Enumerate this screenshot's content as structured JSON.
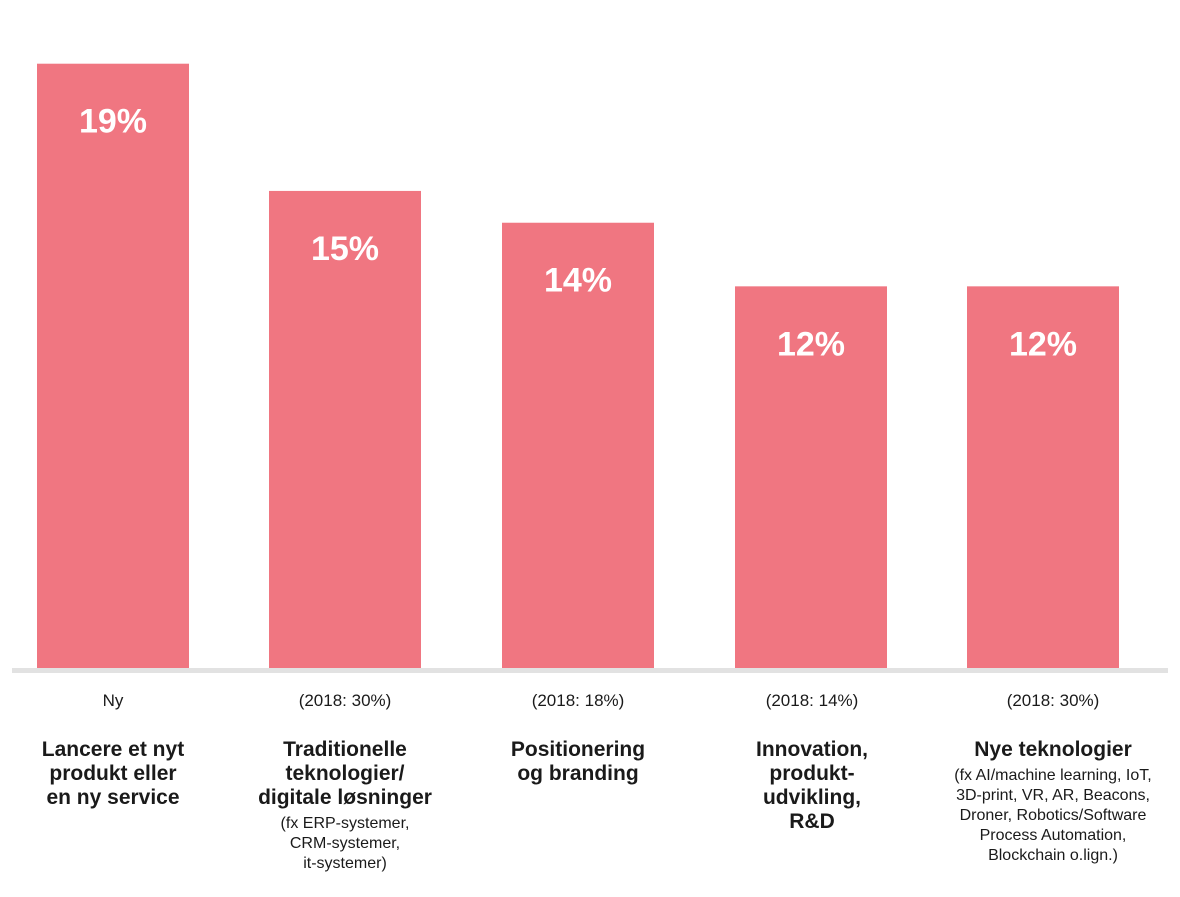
{
  "chart_data": {
    "type": "bar",
    "title": "",
    "xlabel": "",
    "ylabel": "",
    "ylim": [
      0,
      20.5
    ],
    "grid": false,
    "bar_color": "#f07681",
    "baseline_color": "#e2e2e2",
    "value_label_color": "#ffffff",
    "categories": [
      {
        "title": "Lancere et nyt\nprodukt eller\nen ny service",
        "note": "",
        "compare": "Ny",
        "value": 19,
        "value_label": "19%"
      },
      {
        "title": "Traditionelle\nteknologier/\ndigitale løsninger",
        "note": "(fx ERP-systemer,\nCRM-systemer,\nit-systemer)",
        "compare": "(2018: 30%)",
        "value": 15,
        "value_label": "15%"
      },
      {
        "title": "Positionering\nog branding",
        "note": "",
        "compare": "(2018: 18%)",
        "value": 14,
        "value_label": "14%"
      },
      {
        "title": "Innovation,\nprodukt-\nudvikling,\nR&D",
        "note": "",
        "compare": "(2018: 14%)",
        "value": 12,
        "value_label": "12%"
      },
      {
        "title": "Nye teknologier",
        "note": "(fx AI/machine learning, IoT,\n3D-print, VR, AR, Beacons,\nDroner, Robotics/Software\nProcess Automation,\nBlockchain o.lign.)",
        "compare": "(2018: 30%)",
        "value": 12,
        "value_label": "12%"
      }
    ]
  }
}
